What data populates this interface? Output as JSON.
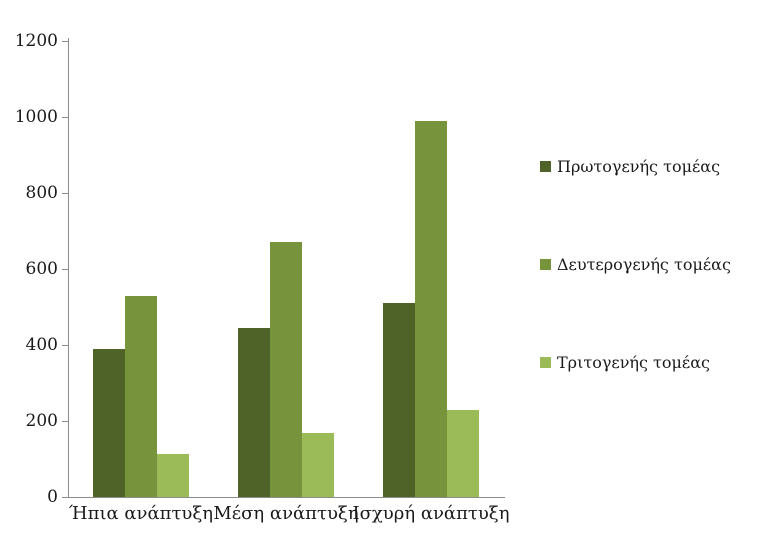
{
  "chart_data": {
    "type": "bar",
    "title": "",
    "xlabel": "",
    "ylabel": "",
    "categories": [
      "Ήπια ανάπτυξη",
      "Μέση ανάπτυξη",
      "Ισχυρή ανάπτυξη"
    ],
    "series": [
      {
        "name": "Πρωτογενής τομέας",
        "color": "#4f6228",
        "values": [
          390,
          445,
          510
        ]
      },
      {
        "name": "Δευτερογενής τομέας",
        "color": "#77933c",
        "values": [
          530,
          670,
          990
        ]
      },
      {
        "name": "Τριτογενής τομέας",
        "color": "#9bbb59",
        "values": [
          113,
          168,
          230
        ]
      }
    ],
    "ylim": [
      0,
      1200
    ],
    "yticks": [
      0,
      200,
      400,
      600,
      800,
      1000,
      1200
    ],
    "grid": false,
    "legend_position": "right",
    "axis_color": "#8c8c8c",
    "text_color": "#1a1a1a",
    "background": "#ffffff"
  }
}
